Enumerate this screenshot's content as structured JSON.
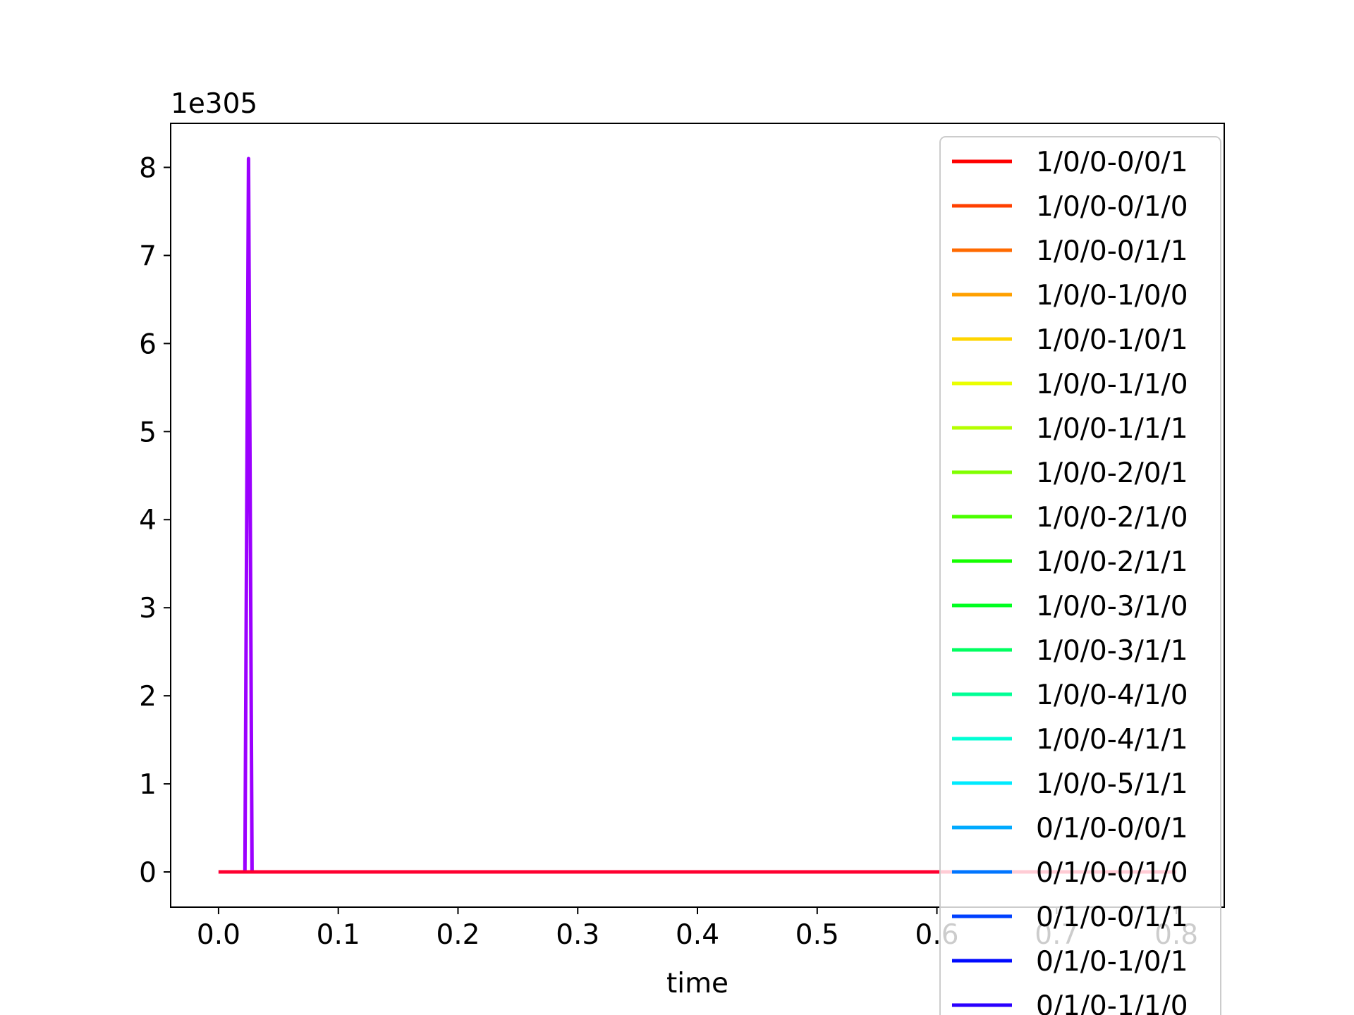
{
  "chart_data": {
    "type": "line",
    "title": "",
    "xlabel": "time",
    "ylabel": "",
    "y_offset_label": "1e305",
    "xlim": [
      -0.04,
      0.84
    ],
    "ylim": [
      -0.4,
      8.5
    ],
    "x_ticks": [
      "0.0",
      "0.1",
      "0.2",
      "0.3",
      "0.4",
      "0.5",
      "0.6",
      "0.7",
      "0.8"
    ],
    "y_ticks": [
      "0",
      "1",
      "2",
      "3",
      "4",
      "5",
      "6",
      "7",
      "8"
    ],
    "grid": false,
    "legend_position": "top-right",
    "series": [
      {
        "name": "1/0/0-0/0/1",
        "color": "#ff0000"
      },
      {
        "name": "1/0/0-0/1/0",
        "color": "#ff4000"
      },
      {
        "name": "1/0/0-0/1/1",
        "color": "#ff6a00"
      },
      {
        "name": "1/0/0-1/0/0",
        "color": "#ffa000"
      },
      {
        "name": "1/0/0-1/0/1",
        "color": "#ffd500"
      },
      {
        "name": "1/0/0-1/1/0",
        "color": "#eaff00"
      },
      {
        "name": "1/0/0-1/1/1",
        "color": "#b5ff00"
      },
      {
        "name": "1/0/0-2/0/1",
        "color": "#80ff00"
      },
      {
        "name": "1/0/0-2/1/0",
        "color": "#4aff00"
      },
      {
        "name": "1/0/0-2/1/1",
        "color": "#15ff00"
      },
      {
        "name": "1/0/0-3/1/0",
        "color": "#00ff20"
      },
      {
        "name": "1/0/0-3/1/1",
        "color": "#00ff60"
      },
      {
        "name": "1/0/0-4/1/0",
        "color": "#00ff95"
      },
      {
        "name": "1/0/0-4/1/1",
        "color": "#00ffd5"
      },
      {
        "name": "1/0/0-5/1/1",
        "color": "#00eaff"
      },
      {
        "name": "0/1/0-0/0/1",
        "color": "#00aaff"
      },
      {
        "name": "0/1/0-0/1/0",
        "color": "#0075ff"
      },
      {
        "name": "0/1/0-0/1/1",
        "color": "#0040ff"
      },
      {
        "name": "0/1/0-1/0/1",
        "color": "#000aff"
      },
      {
        "name": "0/1/0-1/1/0",
        "color": "#2a00ff"
      }
    ],
    "plotted_lines": [
      {
        "color": "#9b00ff",
        "x": [
          0.0,
          0.022,
          0.025,
          0.028,
          0.8
        ],
        "y": [
          0,
          0,
          8.1,
          0,
          0
        ]
      },
      {
        "color": "#ff0030",
        "x": [
          0.0,
          0.8
        ],
        "y": [
          0,
          0
        ]
      }
    ]
  }
}
